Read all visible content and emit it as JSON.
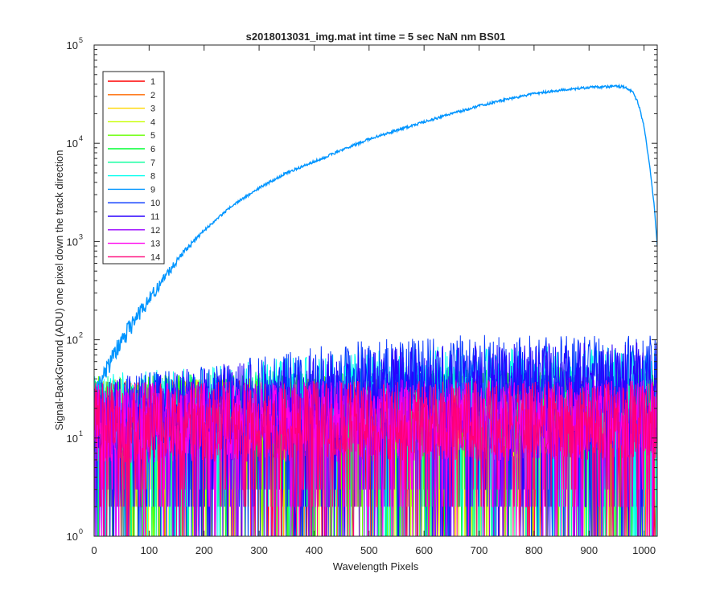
{
  "chart_data": {
    "type": "line",
    "title": "s2018013031_img.mat int time = 5 sec  NaN nm BS01",
    "xlabel": "Wavelength Pixels",
    "ylabel": "Signal-BackGround (ADU) one pixel down the track direction",
    "xlim": [
      0,
      1024
    ],
    "ylim": [
      1,
      100000
    ],
    "yscale": "log",
    "grid": false,
    "legend_position": "top-left",
    "x_ticks": [
      "0",
      "100",
      "200",
      "300",
      "400",
      "500",
      "600",
      "700",
      "800",
      "900",
      "1000"
    ],
    "x_tick_values": [
      0,
      100,
      200,
      300,
      400,
      500,
      600,
      700,
      800,
      900,
      1000
    ],
    "y_ticks": [
      {
        "base": "10",
        "exp": "0",
        "value": 1
      },
      {
        "base": "10",
        "exp": "1",
        "value": 10
      },
      {
        "base": "10",
        "exp": "2",
        "value": 100
      },
      {
        "base": "10",
        "exp": "3",
        "value": 1000
      },
      {
        "base": "10",
        "exp": "4",
        "value": 10000
      },
      {
        "base": "10",
        "exp": "5",
        "value": 100000
      }
    ],
    "series": [
      {
        "name": "1",
        "color": "#ff0000",
        "noise_floor": [
          [
            0,
            14
          ],
          [
            1024,
            14
          ]
        ]
      },
      {
        "name": "2",
        "color": "#ff6a00",
        "noise_floor": [
          [
            0,
            14
          ],
          [
            1024,
            14
          ]
        ]
      },
      {
        "name": "3",
        "color": "#ffd700",
        "noise_floor": [
          [
            0,
            14
          ],
          [
            1024,
            14
          ]
        ]
      },
      {
        "name": "4",
        "color": "#c8ff00",
        "noise_floor": [
          [
            0,
            14
          ],
          [
            1024,
            16
          ]
        ]
      },
      {
        "name": "5",
        "color": "#66ff00",
        "noise_floor": [
          [
            0,
            15
          ],
          [
            1024,
            18
          ]
        ]
      },
      {
        "name": "6",
        "color": "#00ff33",
        "noise_floor": [
          [
            0,
            15
          ],
          [
            1024,
            20
          ]
        ]
      },
      {
        "name": "7",
        "color": "#00ff99",
        "noise_floor": [
          [
            0,
            15
          ],
          [
            1024,
            22
          ]
        ]
      },
      {
        "name": "8",
        "color": "#00ffee",
        "noise_floor": [
          [
            0,
            16
          ],
          [
            600,
            30
          ],
          [
            1024,
            30
          ]
        ]
      },
      {
        "name": "9",
        "color": "#0095ff",
        "profile": [
          [
            0,
            25
          ],
          [
            15,
            40
          ],
          [
            30,
            60
          ],
          [
            50,
            100
          ],
          [
            80,
            180
          ],
          [
            100,
            260
          ],
          [
            130,
            450
          ],
          [
            160,
            750
          ],
          [
            200,
            1300
          ],
          [
            250,
            2300
          ],
          [
            300,
            3500
          ],
          [
            350,
            5000
          ],
          [
            400,
            6500
          ],
          [
            450,
            8500
          ],
          [
            500,
            11000
          ],
          [
            550,
            13500
          ],
          [
            600,
            16500
          ],
          [
            650,
            20000
          ],
          [
            700,
            24000
          ],
          [
            750,
            28000
          ],
          [
            800,
            32000
          ],
          [
            850,
            35000
          ],
          [
            900,
            37000
          ],
          [
            950,
            38000
          ],
          [
            965,
            37500
          ],
          [
            980,
            33000
          ],
          [
            990,
            25000
          ],
          [
            1000,
            15000
          ],
          [
            1010,
            6000
          ],
          [
            1018,
            2500
          ],
          [
            1024,
            900
          ]
        ]
      },
      {
        "name": "10",
        "color": "#0033ff",
        "noise_floor": [
          [
            0,
            14
          ],
          [
            300,
            25
          ],
          [
            500,
            35
          ],
          [
            700,
            40
          ],
          [
            1024,
            40
          ]
        ]
      },
      {
        "name": "11",
        "color": "#2a00ff",
        "noise_floor": [
          [
            0,
            14
          ],
          [
            300,
            22
          ],
          [
            500,
            30
          ],
          [
            1024,
            35
          ]
        ]
      },
      {
        "name": "12",
        "color": "#9900ff",
        "noise_floor": [
          [
            0,
            13
          ],
          [
            1024,
            15
          ]
        ]
      },
      {
        "name": "13",
        "color": "#ff00ee",
        "noise_floor": [
          [
            0,
            13
          ],
          [
            1024,
            14
          ]
        ]
      },
      {
        "name": "14",
        "color": "#ff0077",
        "noise_floor": [
          [
            0,
            13
          ],
          [
            1024,
            14
          ]
        ]
      }
    ]
  }
}
